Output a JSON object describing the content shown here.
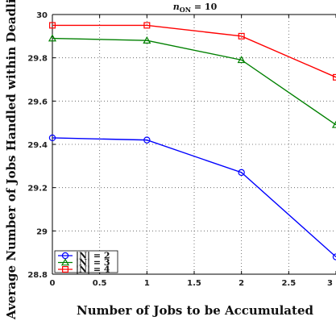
{
  "chart_data": {
    "type": "line",
    "title": "n_ON = 10",
    "title_parts": {
      "main": "n",
      "sub": "ON",
      "rest": " = 10"
    },
    "xlabel": "Number of Jobs to be Accumulated",
    "ylabel": "Average Number of Jobs Handled within Deadline",
    "xlim": [
      0,
      3
    ],
    "ylim": [
      28.8,
      30
    ],
    "x_ticks": [
      0,
      0.5,
      1,
      1.5,
      2,
      2.5,
      3
    ],
    "x_tick_labels": [
      "0",
      "0.5",
      "1",
      "1.5",
      "2",
      "2.5",
      "3"
    ],
    "y_ticks": [
      28.8,
      29,
      29.2,
      29.4,
      29.6,
      29.8,
      30
    ],
    "y_tick_labels": [
      "28.8",
      "29",
      "29.2",
      "29.4",
      "29.6",
      "29.8",
      "30"
    ],
    "grid": true,
    "legend_position": "bottom-left",
    "series": [
      {
        "name": "|N| = 2",
        "color": "#0000ff",
        "marker": "circle",
        "x": [
          0,
          1,
          2,
          3
        ],
        "y": [
          29.43,
          29.42,
          29.27,
          28.88
        ]
      },
      {
        "name": "|N| = 3",
        "color": "#008000",
        "marker": "triangle",
        "x": [
          0,
          1,
          2,
          3
        ],
        "y": [
          29.89,
          29.88,
          29.79,
          29.49
        ]
      },
      {
        "name": "|N| = 4",
        "color": "#ff0000",
        "marker": "square",
        "x": [
          0,
          1,
          2,
          3
        ],
        "y": [
          29.95,
          29.95,
          29.9,
          29.71
        ]
      }
    ]
  }
}
